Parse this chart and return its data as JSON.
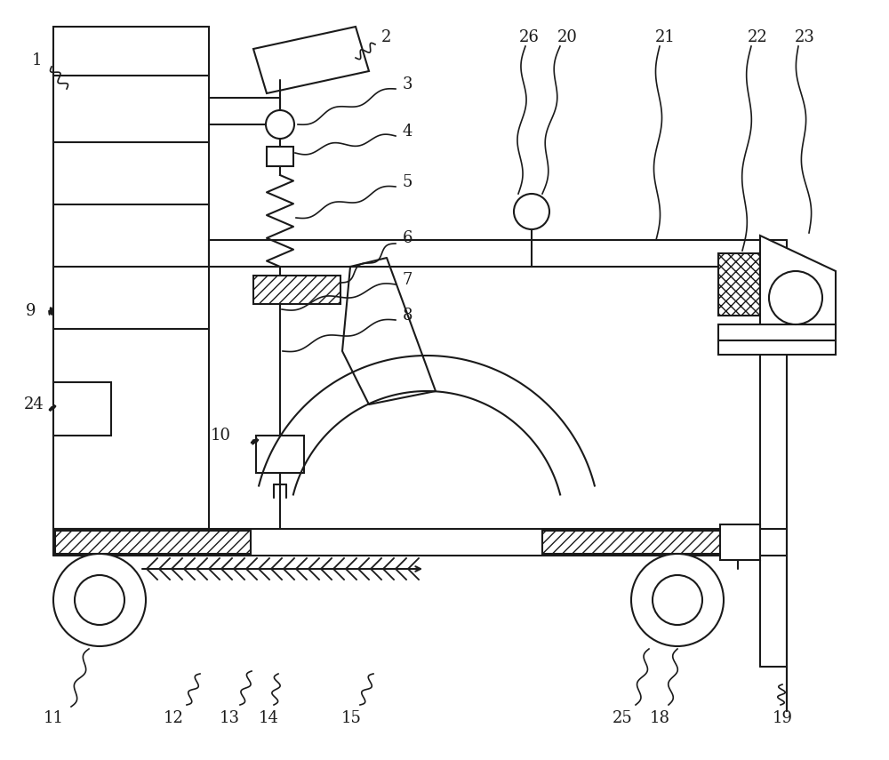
{
  "bg_color": "#ffffff",
  "line_color": "#1a1a1a",
  "figsize": [
    10.0,
    8.55
  ],
  "dpi": 100
}
